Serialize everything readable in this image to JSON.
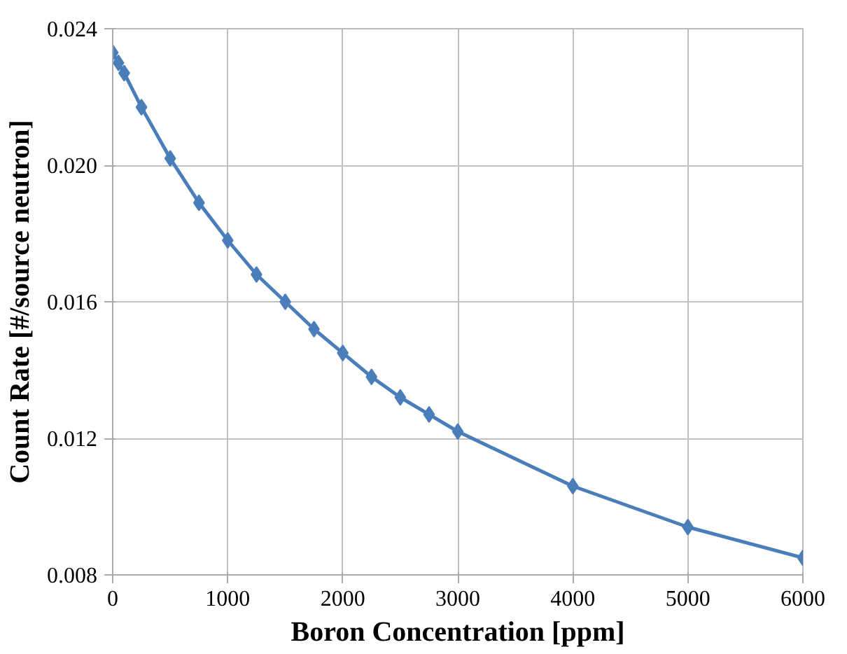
{
  "chart_data": {
    "type": "line",
    "xlabel": "Boron Concentration [ppm]",
    "ylabel": "Count Rate [#/source neutron]",
    "x": [
      0,
      50,
      100,
      250,
      500,
      750,
      1000,
      1250,
      1500,
      1750,
      2000,
      2250,
      2500,
      2750,
      3000,
      4000,
      5000,
      6000
    ],
    "series": [
      {
        "color": "#4a7ebb",
        "values": [
          0.0233,
          0.023,
          0.0227,
          0.0217,
          0.0202,
          0.0189,
          0.0178,
          0.0168,
          0.016,
          0.0152,
          0.0145,
          0.0138,
          0.0132,
          0.0127,
          0.0122,
          0.0106,
          0.0094,
          0.0085
        ]
      }
    ],
    "xlim": [
      0,
      6000
    ],
    "xticks": [
      0,
      1000,
      2000,
      3000,
      4000,
      5000,
      6000
    ],
    "ylim": [
      0.008,
      0.024
    ],
    "yticks": [
      {
        "value": 0.008,
        "label": "0.008"
      },
      {
        "value": 0.012,
        "label": "0.012"
      },
      {
        "value": 0.016,
        "label": "0.016"
      },
      {
        "value": 0.02,
        "label": "0.020"
      },
      {
        "value": 0.024,
        "label": "0.024"
      }
    ],
    "grid": true,
    "marker": "diamond",
    "line_style": "solid"
  }
}
